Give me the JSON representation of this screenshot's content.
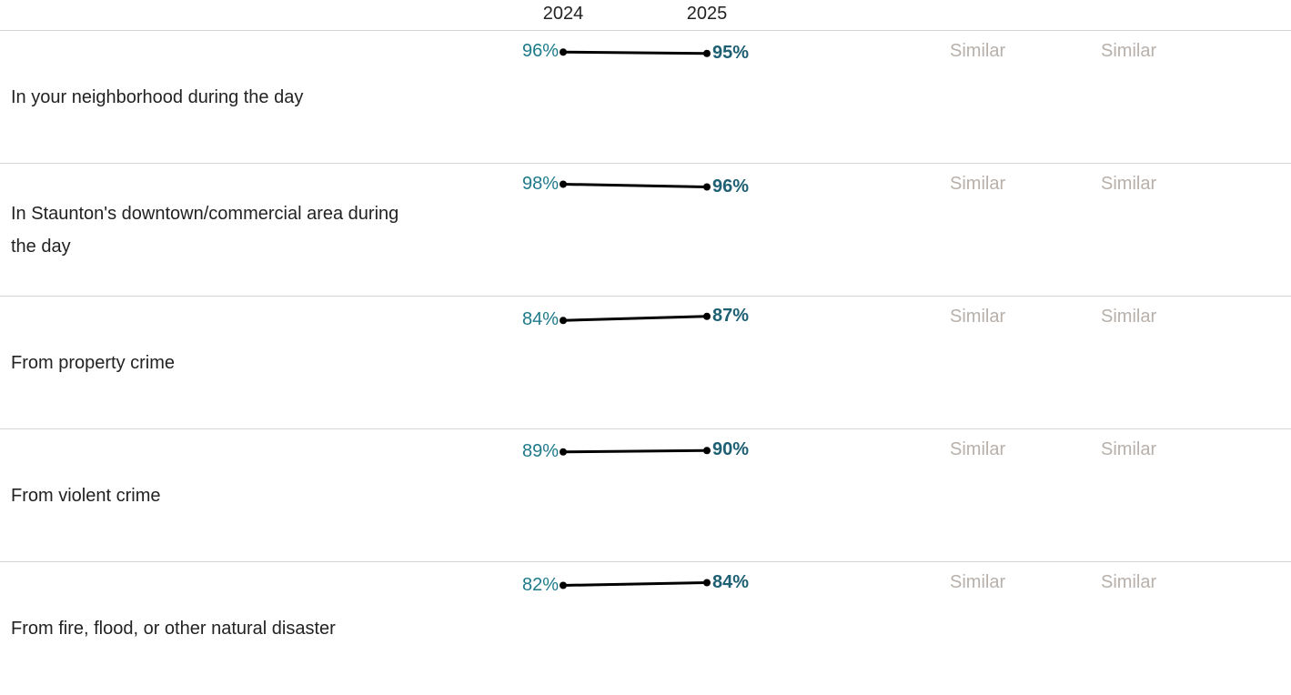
{
  "chart_data": {
    "type": "slope",
    "categories": [
      "In your neighborhood during the day",
      "In Staunton's downtown/commercial area during the day",
      "From property crime",
      "From violent crime",
      "From fire, flood, or other natural disaster"
    ],
    "series": [
      {
        "name": "2024",
        "color": "#1e7a8a",
        "values": [
          96,
          98,
          84,
          89,
          82
        ],
        "value_labels": [
          "96%",
          "98%",
          "84%",
          "89%",
          "82%"
        ]
      },
      {
        "name": "2025",
        "color": "#1d5f73",
        "values": [
          95,
          96,
          87,
          90,
          84
        ],
        "value_labels": [
          "95%",
          "96%",
          "87%",
          "90%",
          "84%"
        ]
      }
    ],
    "line_color": "#000000",
    "comparisons": [
      [
        "Similar",
        "Similar"
      ],
      [
        "Similar",
        "Similar"
      ],
      [
        "Similar",
        "Similar"
      ],
      [
        "Similar",
        "Similar"
      ],
      [
        "Similar",
        "Similar"
      ]
    ],
    "comparison_color": "#b8b0aa"
  }
}
